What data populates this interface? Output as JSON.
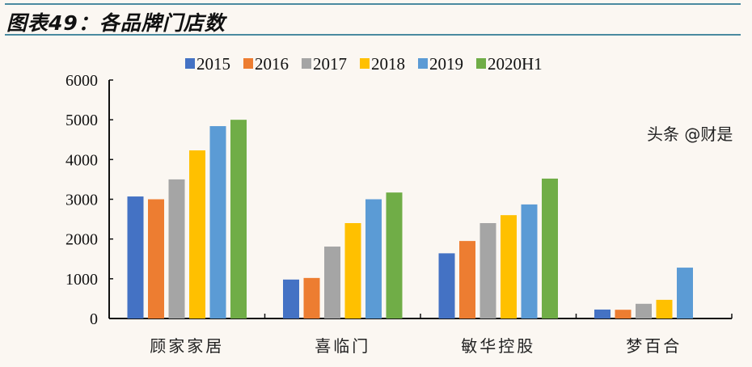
{
  "header": {
    "title": "图表49：各品牌门店数"
  },
  "watermark": "头条 @财是",
  "chart_data": {
    "type": "bar",
    "title": "",
    "xlabel": "",
    "ylabel": "",
    "ylim": [
      0,
      6000
    ],
    "yticks": [
      0,
      1000,
      2000,
      3000,
      4000,
      5000,
      6000
    ],
    "grid": false,
    "legend_position": "top",
    "categories": [
      "顾家家居",
      "喜临门",
      "敏华控股",
      "梦百合"
    ],
    "series": [
      {
        "name": "2015",
        "color": "#4472c4",
        "values": [
          3070,
          980,
          1640,
          225
        ]
      },
      {
        "name": "2016",
        "color": "#ed7d31",
        "values": [
          3000,
          1020,
          1950,
          220
        ]
      },
      {
        "name": "2017",
        "color": "#a5a5a5",
        "values": [
          3500,
          1810,
          2400,
          370
        ]
      },
      {
        "name": "2018",
        "color": "#ffc000",
        "values": [
          4230,
          2400,
          2600,
          470
        ]
      },
      {
        "name": "2019",
        "color": "#5b9bd5",
        "values": [
          4840,
          3000,
          2870,
          1280
        ]
      },
      {
        "name": "2020H1",
        "color": "#70ad47",
        "values": [
          5000,
          3170,
          3520,
          null
        ]
      }
    ]
  }
}
